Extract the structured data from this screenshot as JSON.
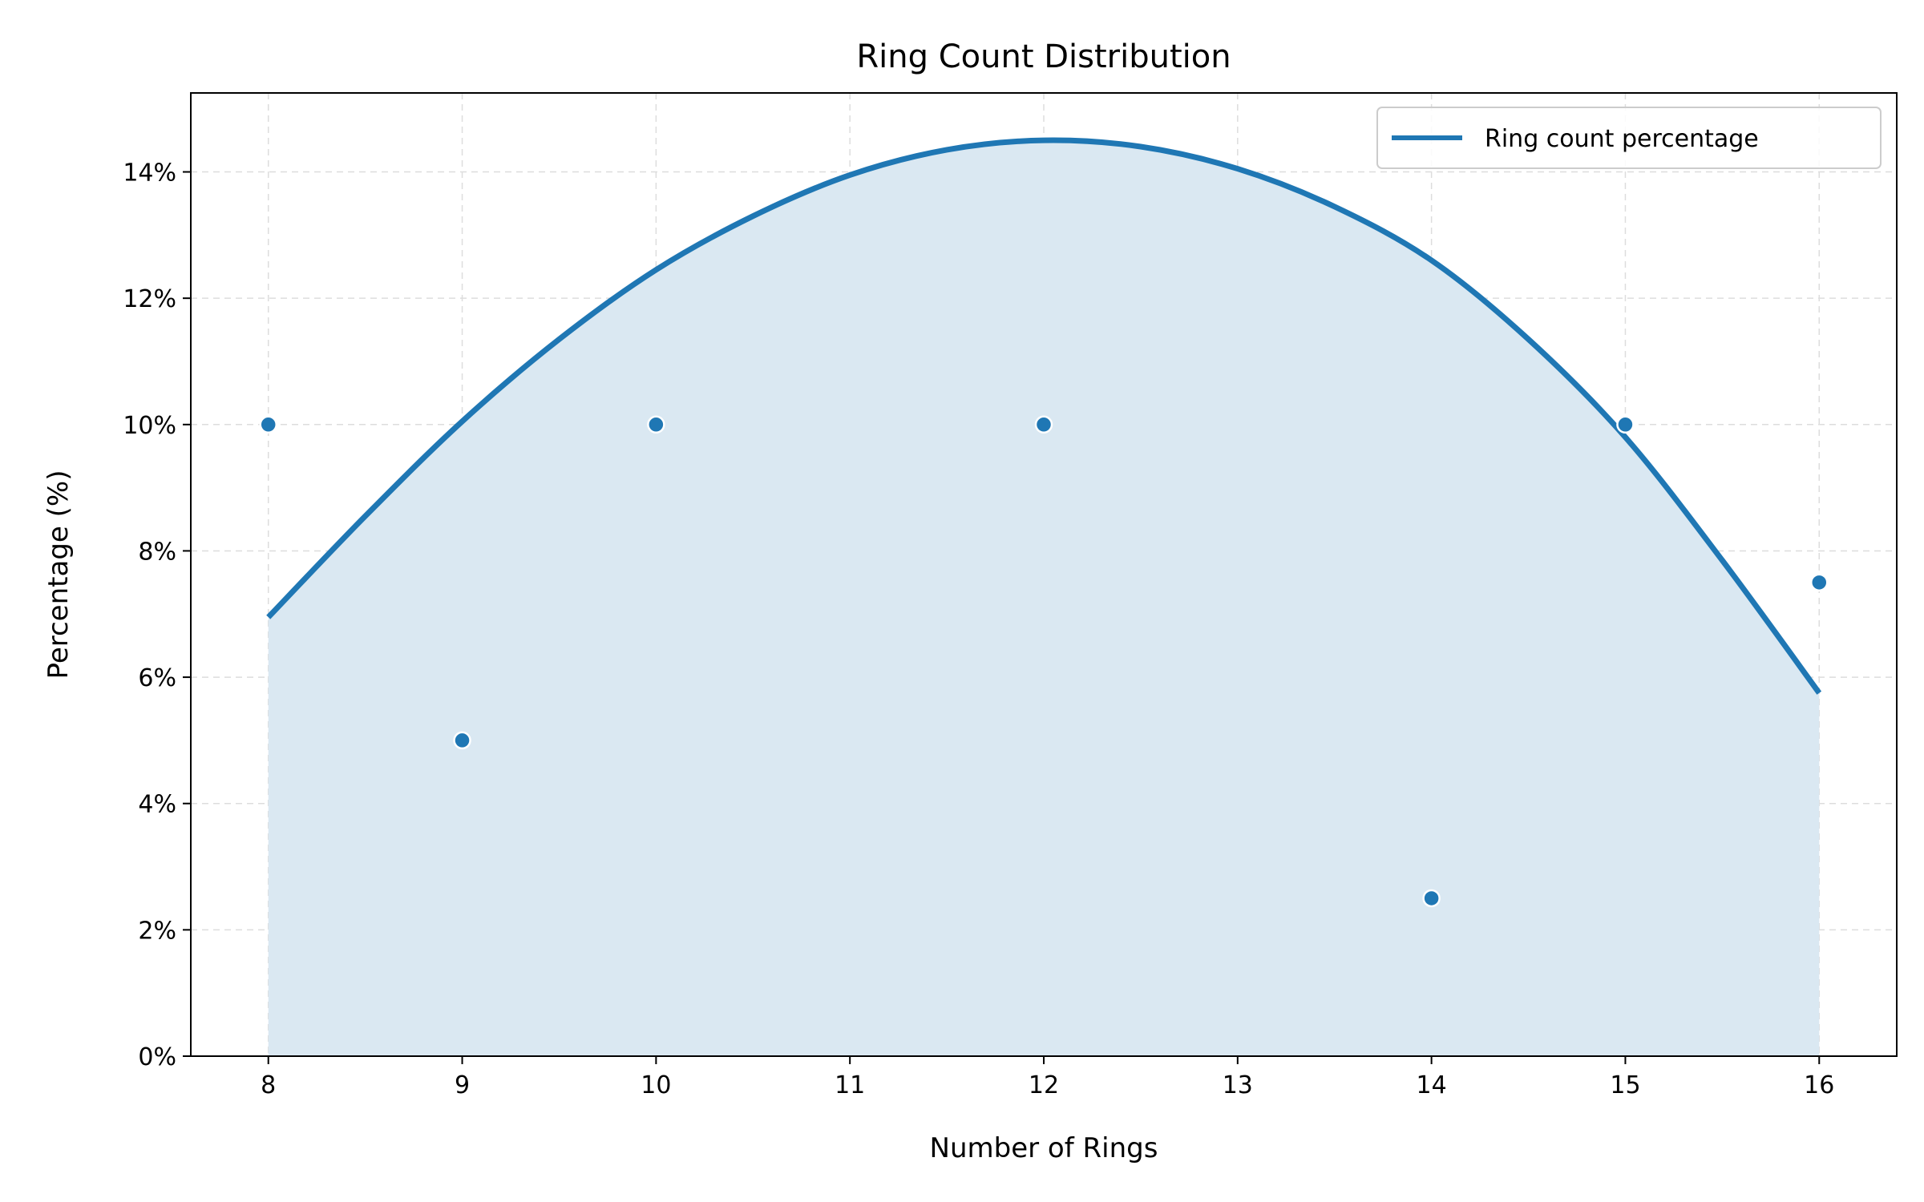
{
  "chart_data": {
    "type": "line",
    "title": "Ring Count Distribution",
    "xlabel": "Number of Rings",
    "ylabel": "Percentage (%)",
    "xlim": [
      7.6,
      16.4
    ],
    "ylim": [
      0,
      15.25
    ],
    "x_ticks": [
      8,
      9,
      10,
      11,
      12,
      13,
      14,
      15,
      16
    ],
    "x_tick_labels": [
      "8",
      "9",
      "10",
      "11",
      "12",
      "13",
      "14",
      "15",
      "16"
    ],
    "y_ticks": [
      0,
      2,
      4,
      6,
      8,
      10,
      12,
      14
    ],
    "y_tick_labels": [
      "0%",
      "2%",
      "4%",
      "6%",
      "8%",
      "10%",
      "12%",
      "14%"
    ],
    "grid": true,
    "legend_position": "top-right",
    "colors": {
      "series": "#1f77b4",
      "fill": "#dae8f2",
      "grid": "#dddddd"
    },
    "series": [
      {
        "name": "Ring count percentage",
        "style": "smooth-line-with-fill",
        "x": [
          8,
          8.5,
          9,
          9.5,
          10,
          10.5,
          11,
          11.5,
          12,
          12.5,
          13,
          13.5,
          14,
          14.5,
          15,
          15.5,
          16
        ],
        "y": [
          6.95,
          8.55,
          10.05,
          11.35,
          12.45,
          13.3,
          13.95,
          14.35,
          14.5,
          14.4,
          14.05,
          13.45,
          12.6,
          11.35,
          9.8,
          7.85,
          5.75
        ]
      }
    ],
    "points": {
      "x": [
        8,
        9,
        10,
        12,
        14,
        15,
        16
      ],
      "y": [
        10,
        5,
        10,
        10,
        2.5,
        10,
        7.5
      ]
    }
  }
}
